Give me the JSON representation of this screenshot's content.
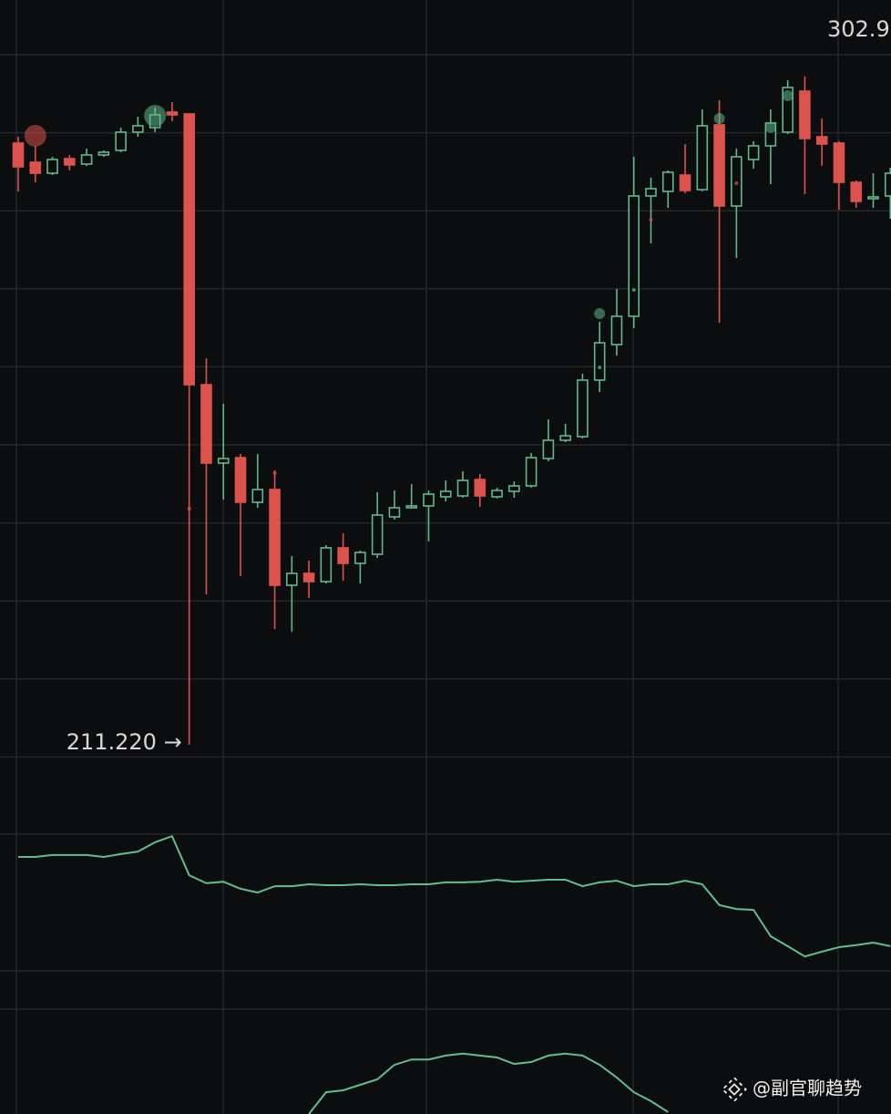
{
  "chart_data": {
    "type": "candlestick",
    "candles": {
      "open": [
        293.73,
        291.1,
        289.6,
        291.6,
        290.85,
        292.1,
        292.73,
        295.23,
        295.85,
        297.98,
        297.73,
        260.6,
        249.85,
        250.6,
        244.48,
        246.23,
        233.1,
        234.73,
        233.6,
        238.23,
        236.1,
        237.35,
        242.48,
        243.73,
        243.98,
        245.23,
        245.35,
        247.6,
        245.23,
        245.98,
        246.73,
        250.48,
        252.98,
        253.48,
        261.23,
        266.1,
        269.98,
        286.48,
        287.1,
        289.35,
        287.35,
        296.23,
        285.1,
        291.48,
        293.35,
        295.23,
        300.85,
        294.6,
        293.73,
        288.35,
        286.1,
        286.48
      ],
      "high": [
        294.6,
        293.35,
        291.85,
        292.1,
        292.98,
        292.73,
        295.85,
        297.35,
        298.6,
        299.35,
        297.73,
        264.23,
        257.98,
        251.1,
        251.1,
        248.85,
        237.1,
        236.48,
        238.6,
        240.23,
        237.85,
        245.85,
        246.1,
        246.98,
        246.1,
        247.48,
        248.73,
        248.35,
        246.48,
        247.35,
        251.23,
        255.85,
        255.23,
        262.1,
        269.23,
        273.73,
        291.85,
        288.98,
        289.98,
        293.6,
        298.35,
        299.6,
        292.98,
        293.98,
        298.35,
        302.35,
        302.9,
        297.1,
        293.98,
        288.6,
        289.6,
        290.35
      ],
      "low": [
        287.1,
        288.35,
        289.35,
        289.98,
        290.6,
        291.85,
        292.48,
        294.6,
        295.23,
        296.73,
        211.22,
        231.85,
        244.85,
        234.35,
        243.73,
        227.1,
        226.73,
        231.35,
        233.35,
        233.73,
        233.35,
        236.85,
        242.1,
        243.6,
        239.1,
        244.6,
        245.1,
        243.85,
        244.98,
        245.1,
        246.48,
        250.1,
        252.73,
        253.23,
        259.6,
        264.6,
        268.35,
        279.98,
        284.85,
        286.85,
        287.1,
        269.1,
        277.98,
        290.23,
        288.1,
        294.98,
        286.73,
        290.6,
        284.6,
        284.85,
        284.85,
        283.35
      ],
      "close": [
        290.48,
        289.6,
        291.48,
        290.73,
        292.1,
        292.48,
        295.23,
        296.1,
        297.6,
        297.6,
        260.6,
        249.85,
        250.48,
        244.48,
        246.23,
        233.1,
        234.73,
        233.6,
        238.23,
        236.1,
        237.6,
        242.73,
        243.73,
        243.98,
        245.6,
        245.98,
        247.48,
        245.35,
        246.1,
        246.73,
        250.6,
        252.98,
        253.6,
        261.23,
        266.35,
        269.98,
        286.48,
        287.48,
        289.73,
        287.23,
        296.1,
        285.1,
        291.85,
        293.35,
        296.48,
        301.35,
        294.35,
        293.6,
        288.35,
        285.73,
        286.35,
        289.6
      ]
    },
    "up_color": "#5fb98a",
    "down_color": "#dc524d",
    "ylim": [
      204.6,
      313.35
    ],
    "ygrid": [
      305.85,
      295.15,
      284.45,
      273.75,
      263.05,
      252.35,
      241.65,
      230.95,
      220.25,
      209.55
    ],
    "annotations": [
      {
        "value": 302.9,
        "label": "302.9"
      },
      {
        "value": 211.22,
        "label": "211.220 →"
      }
    ],
    "markers": [
      {
        "candle": 1,
        "value": 294.73,
        "color": "#dc524d",
        "size": "large"
      },
      {
        "candle": 8,
        "value": 297.48,
        "color": "#5fb98a",
        "size": "large"
      },
      {
        "candle": 34,
        "value": 270.35,
        "color": "#5fb98a",
        "size": "medium"
      },
      {
        "candle": 41,
        "value": 297.1,
        "color": "#5fb98a",
        "size": "medium"
      },
      {
        "candle": 44,
        "value": 295.85,
        "color": "#5fb98a",
        "size": "medium"
      },
      {
        "candle": 45,
        "value": 300.23,
        "color": "#5fb98a",
        "size": "medium"
      },
      {
        "candle": 10,
        "value": 243.6,
        "color": "#dc524d",
        "size": "small"
      },
      {
        "candle": 15,
        "value": 248.48,
        "color": "#dc524d",
        "size": "small"
      },
      {
        "candle": 34,
        "value": 262.98,
        "color": "#5fb98a",
        "size": "small"
      },
      {
        "candle": 36,
        "value": 273.6,
        "color": "#5fb98a",
        "size": "small"
      },
      {
        "candle": 37,
        "value": 283.23,
        "color": "#dc524d",
        "size": "small"
      },
      {
        "candle": 42,
        "value": 288.23,
        "color": "#dc524d",
        "size": "small"
      }
    ],
    "indicator": {
      "ylim": [
        0,
        100
      ],
      "series": [
        {
          "color": "#5fbf8f",
          "values": [
            80.1,
            80.1,
            80.7,
            80.7,
            80.7,
            80.1,
            81.0,
            81.8,
            84.7,
            86.6,
            74.4,
            71.9,
            72.4,
            70.2,
            69.0,
            71.0,
            71.0,
            71.6,
            71.3,
            71.3,
            71.6,
            71.3,
            71.3,
            71.6,
            71.6,
            72.2,
            72.2,
            72.4,
            73.0,
            72.4,
            72.7,
            73.0,
            73.0,
            71.0,
            72.2,
            72.7,
            71.0,
            71.6,
            71.6,
            72.7,
            71.6,
            65.1,
            63.9,
            63.6,
            55.4,
            52.3,
            49.1,
            50.6,
            52.0,
            52.6,
            53.4,
            52.3
          ]
        },
        {
          "color": "#5fbf8f",
          "values": [
            null,
            null,
            null,
            null,
            null,
            null,
            null,
            null,
            null,
            null,
            null,
            null,
            null,
            null,
            null,
            null,
            null,
            0,
            6.8,
            7.4,
            9.1,
            10.8,
            15.3,
            17.0,
            17.0,
            18.2,
            18.8,
            18.2,
            17.6,
            15.6,
            16.2,
            18.2,
            18.8,
            18.2,
            15.3,
            11.4,
            6.8,
            4.0,
            0.6,
            null,
            null,
            null,
            null,
            null,
            null,
            null,
            null,
            null,
            null,
            null,
            null,
            null
          ]
        }
      ]
    },
    "watermark": "@副官聊趋势"
  }
}
